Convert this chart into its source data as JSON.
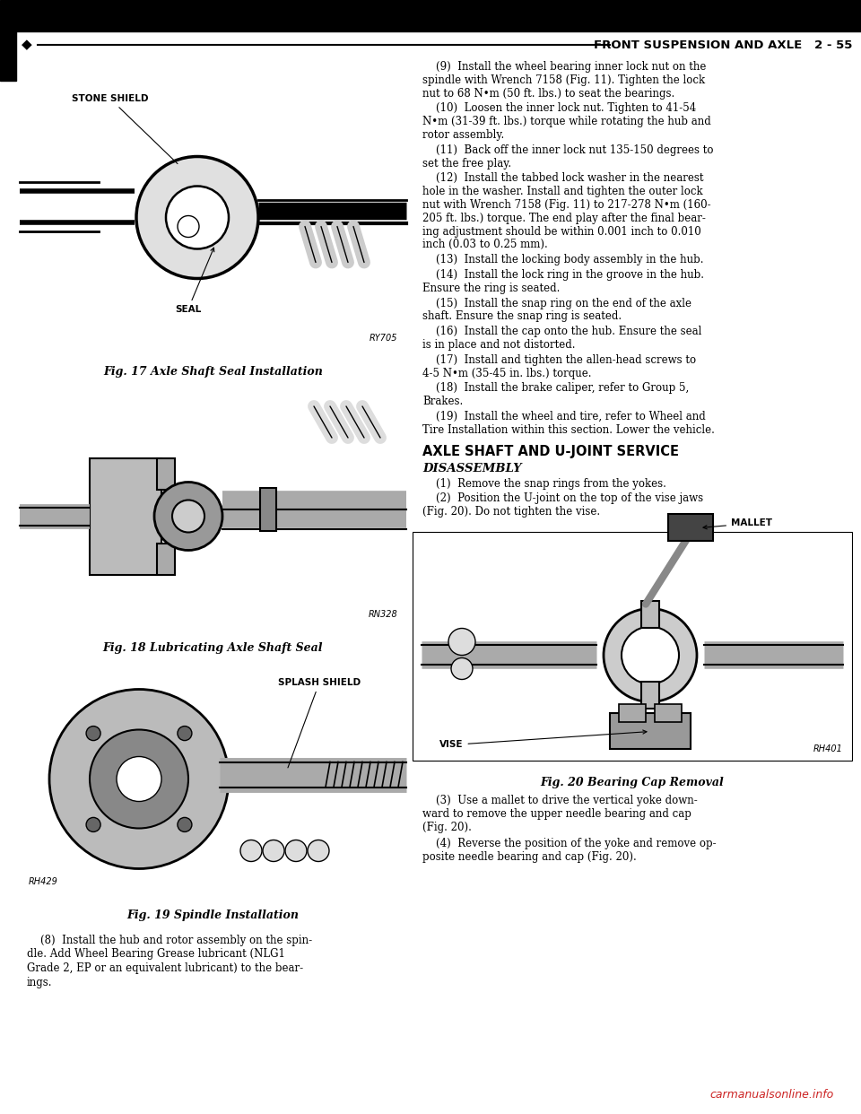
{
  "page_bg": "#ffffff",
  "header_line_color": "#000000",
  "header_text": "FRONT SUSPENSION AND AXLE   2 - 55",
  "header_font_size": 10,
  "bullet_char": "◆",
  "fig17_caption": "Fig. 17 Axle Shaft Seal Installation",
  "fig17_ref": "RY705",
  "fig17_label_stone": "STONE SHIELD",
  "fig17_label_seal": "SEAL",
  "fig18_caption": "Fig. 18 Lubricating Axle Shaft Seal",
  "fig18_ref": "RN328",
  "fig19_caption": "Fig. 19 Spindle Installation",
  "fig19_ref": "RH429",
  "fig19_label": "SPLASH SHIELD",
  "fig20_caption": "Fig. 20 Bearing Cap Removal",
  "fig20_ref": "RH401",
  "fig20_label_mallet": "MALLET",
  "fig20_label_vise": "VISE",
  "right_paragraphs": [
    [
      "    (9)  Install the wheel bearing inner lock nut on the",
      "spindle with Wrench 7158 (Fig. 11). Tighten the lock",
      "nut to 68 N•m (50 ft. lbs.) to seat the bearings."
    ],
    [
      "    (10)  Loosen the inner lock nut. Tighten to 41-54",
      "N•m (31-39 ft. lbs.) torque while rotating the hub and",
      "rotor assembly."
    ],
    [
      "    (11)  Back off the inner lock nut 135-150 degrees to",
      "set the free play."
    ],
    [
      "    (12)  Install the tabbed lock washer in the nearest",
      "hole in the washer. Install and tighten the outer lock",
      "nut with Wrench 7158 (Fig. 11) to 217-278 N•m (160-",
      "205 ft. lbs.) torque. The end play after the final bear-",
      "ing adjustment should be within 0.001 inch to 0.010",
      "inch (0.03 to 0.25 mm)."
    ],
    [
      "    (13)  Install the locking body assembly in the hub."
    ],
    [
      "    (14)  Install the lock ring in the groove in the hub.",
      "Ensure the ring is seated."
    ],
    [
      "    (15)  Install the snap ring on the end of the axle",
      "shaft. Ensure the snap ring is seated."
    ],
    [
      "    (16)  Install the cap onto the hub. Ensure the seal",
      "is in place and not distorted."
    ],
    [
      "    (17)  Install and tighten the allen-head screws to",
      "4-5 N•m (35-45 in. lbs.) torque."
    ],
    [
      "    (18)  Install the brake caliper, refer to Group 5,",
      "Brakes."
    ],
    [
      "    (19)  Install the wheel and tire, refer to Wheel and",
      "Tire Installation within this section. Lower the vehicle."
    ]
  ],
  "axle_section_header": "AXLE SHAFT AND U-JOINT SERVICE",
  "disassembly_header": "DISASSEMBLY",
  "disassembly_steps": [
    [
      "    (1)  Remove the snap rings from the yokes."
    ],
    [
      "    (2)  Position the U-joint on the top of the vise jaws",
      "(Fig. 20). Do not tighten the vise."
    ]
  ],
  "left_bottom_lines": [
    "    (8)  Install the hub and rotor assembly on the spin-",
    "dle. Add Wheel Bearing Grease lubricant (NLG1",
    "Grade 2, EP or an equivalent lubricant) to the bear-",
    "ings."
  ],
  "right_bottom_lines_3": [
    "    (3)  Use a mallet to drive the vertical yoke down-",
    "ward to remove the upper needle bearing and cap",
    "(Fig. 20)."
  ],
  "right_bottom_lines_4": [
    "    (4)  Reverse the position of the yoke and remove op-",
    "posite needle bearing and cap (Fig. 20)."
  ],
  "watermark": "carmanualsonline.info",
  "watermark_color": "#cc2222"
}
